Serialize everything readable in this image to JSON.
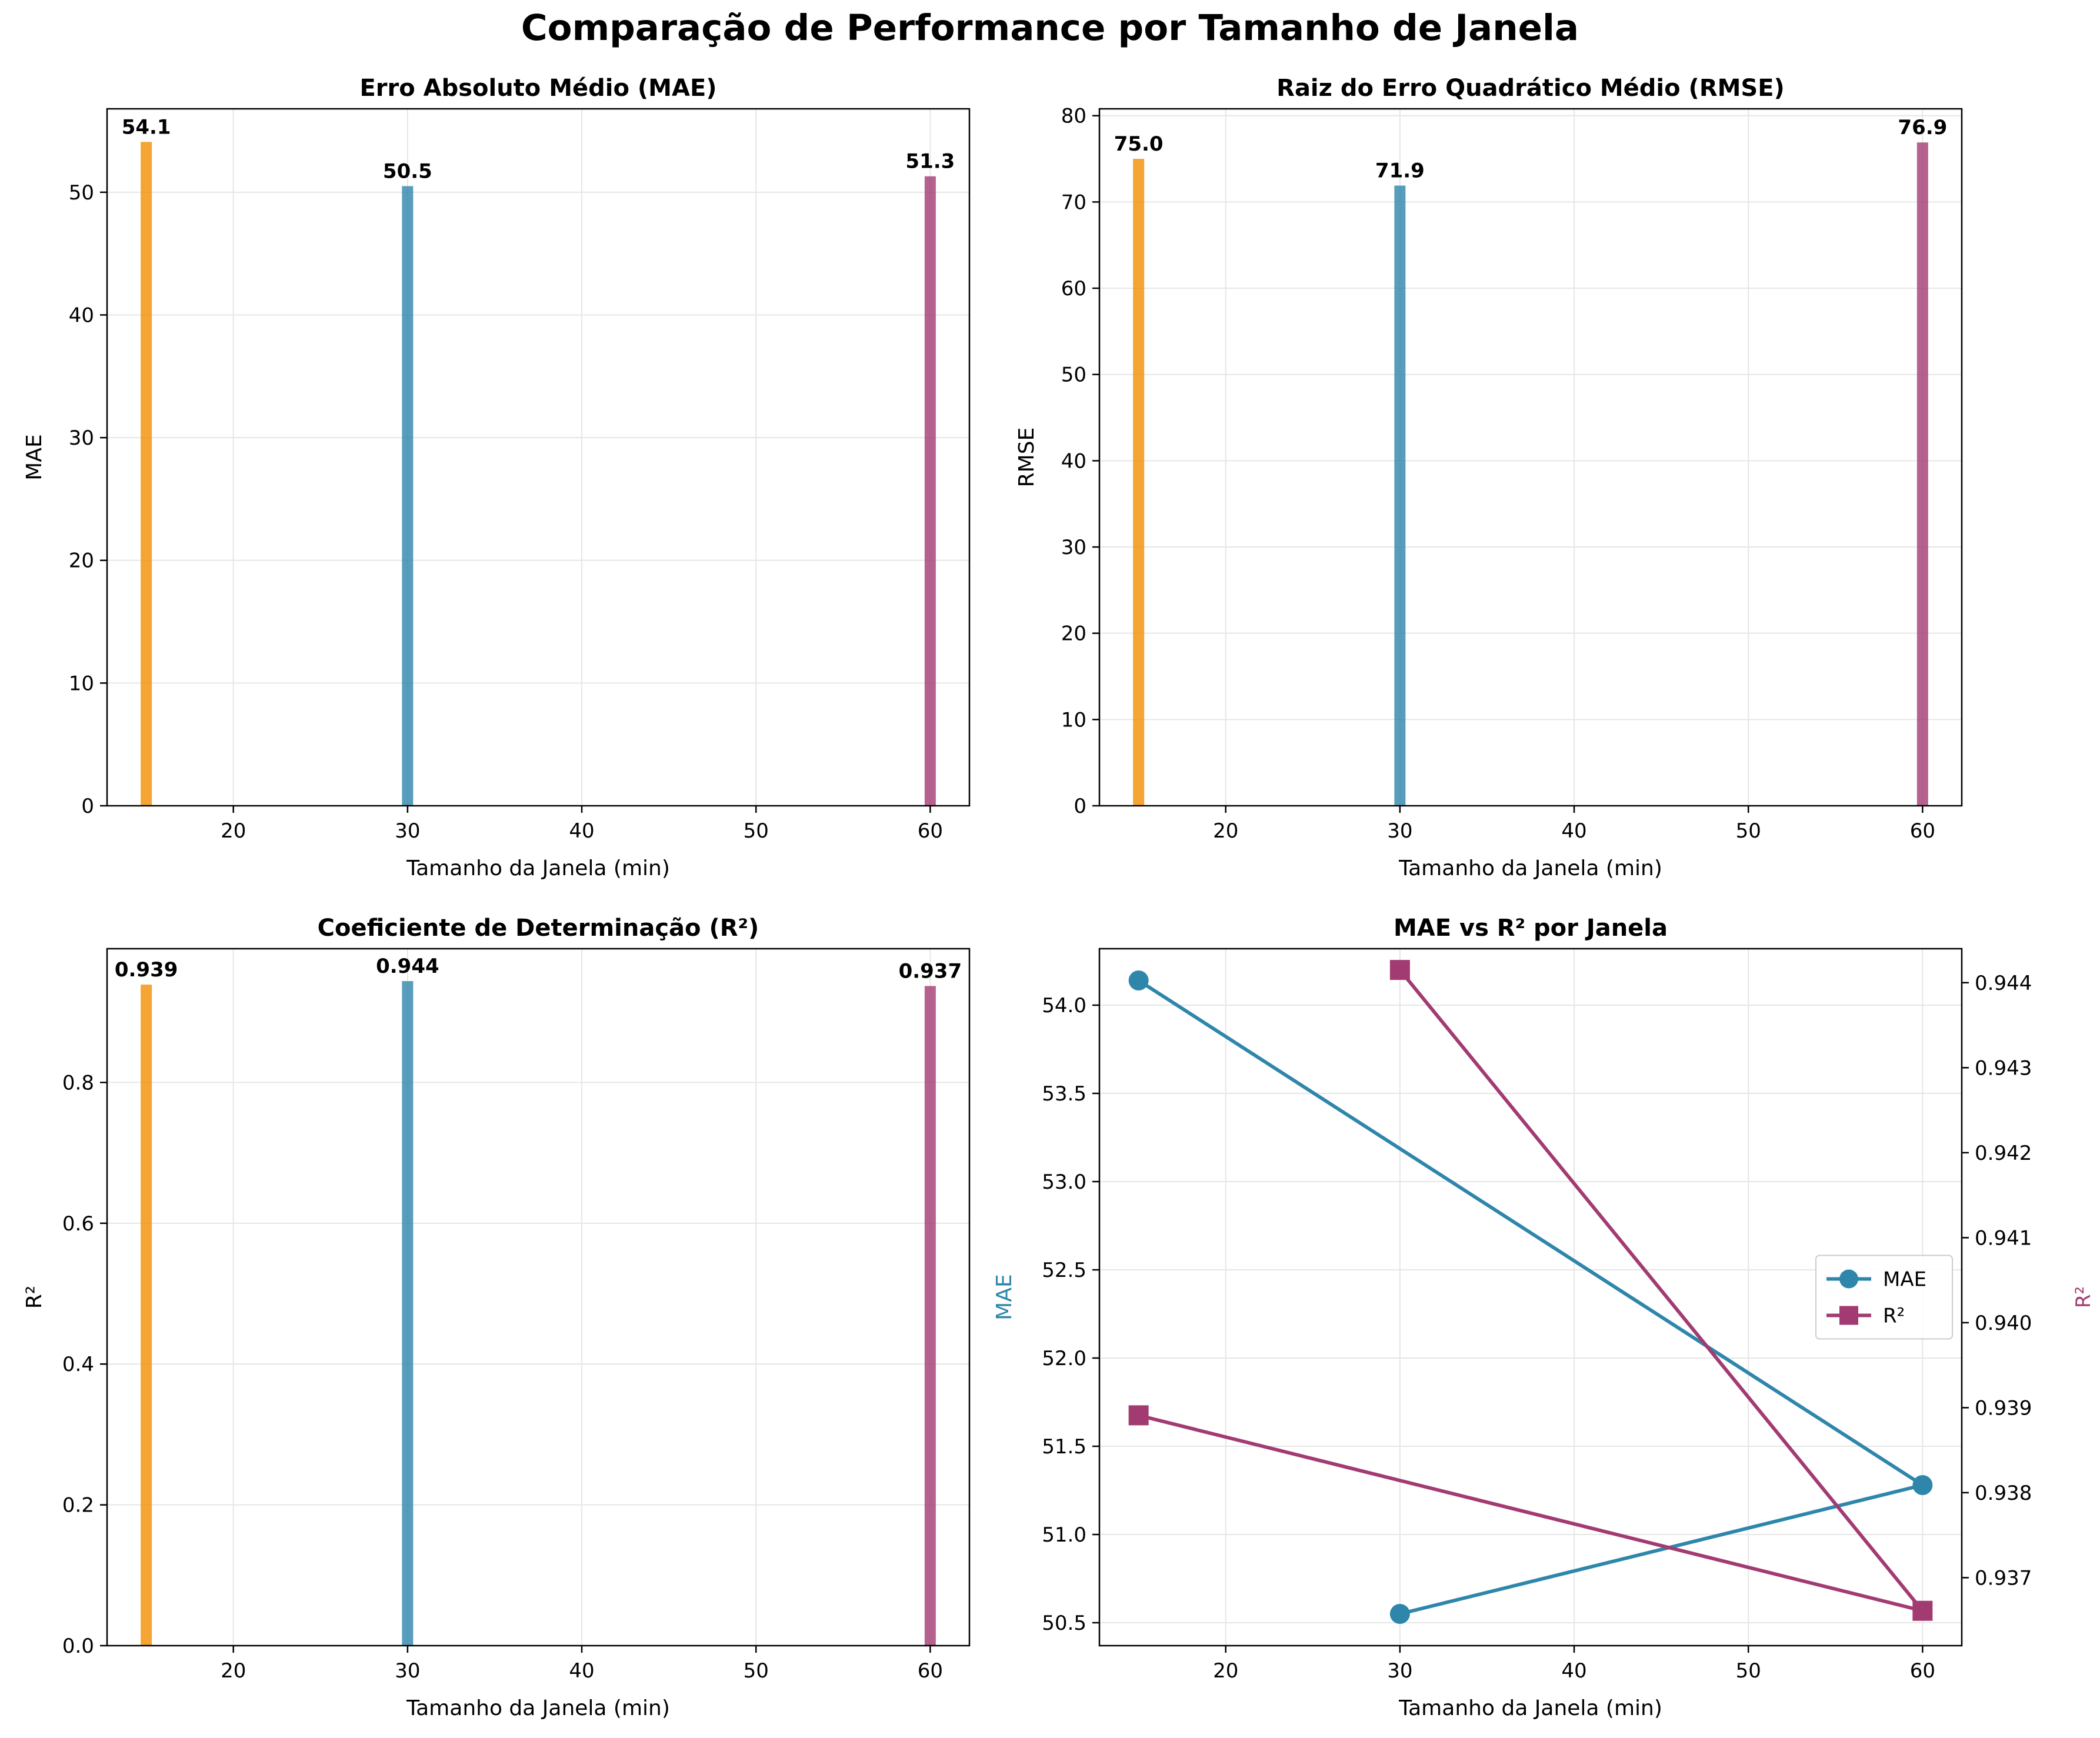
{
  "suptitle": "Comparação de Performance por Tamanho de Janela",
  "colors": {
    "bar_15": "#F18F01",
    "bar_30": "#2E86AB",
    "bar_60": "#A23B72",
    "mae_line": "#2E86AB",
    "r2_line": "#A23B72",
    "grid": "#e6e6e6"
  },
  "chart_data": [
    {
      "type": "bar",
      "title": "Erro Absoluto Médio (MAE)",
      "xlabel": "Tamanho da Janela (min)",
      "ylabel": "MAE",
      "x": [
        15,
        30,
        60
      ],
      "values": [
        54.1,
        50.5,
        51.3
      ],
      "value_labels": [
        "54.1",
        "50.5",
        "51.3"
      ],
      "xlim": [
        12.75,
        62.25
      ],
      "ylim": [
        0,
        56.8
      ],
      "xticks": [
        20,
        30,
        40,
        50,
        60
      ],
      "yticks": [
        0,
        10,
        20,
        30,
        40,
        50
      ],
      "ytick_labels": [
        "0",
        "10",
        "20",
        "30",
        "40",
        "50"
      ],
      "grid": true
    },
    {
      "type": "bar",
      "title": "Raiz do Erro Quadrático Médio (RMSE)",
      "xlabel": "Tamanho da Janela (min)",
      "ylabel": "RMSE",
      "x": [
        15,
        30,
        60
      ],
      "values": [
        75.0,
        71.9,
        76.9
      ],
      "value_labels": [
        "75.0",
        "71.9",
        "76.9"
      ],
      "xlim": [
        12.75,
        62.25
      ],
      "ylim": [
        0,
        80.8
      ],
      "xticks": [
        20,
        30,
        40,
        50,
        60
      ],
      "yticks": [
        0,
        10,
        20,
        30,
        40,
        50,
        60,
        70,
        80
      ],
      "ytick_labels": [
        "0",
        "10",
        "20",
        "30",
        "40",
        "50",
        "60",
        "70",
        "80"
      ],
      "grid": true
    },
    {
      "type": "bar",
      "title": "Coeficiente de Determinação (R²)",
      "xlabel": "Tamanho da Janela (min)",
      "ylabel": "R²",
      "x": [
        15,
        30,
        60
      ],
      "values": [
        0.939,
        0.944,
        0.937
      ],
      "value_labels": [
        "0.939",
        "0.944",
        "0.937"
      ],
      "xlim": [
        12.75,
        62.25
      ],
      "ylim": [
        0,
        0.99
      ],
      "xticks": [
        20,
        30,
        40,
        50,
        60
      ],
      "yticks": [
        0,
        0.2,
        0.4,
        0.6,
        0.8
      ],
      "ytick_labels": [
        "0.0",
        "0.2",
        "0.4",
        "0.6",
        "0.8"
      ],
      "grid": true
    },
    {
      "type": "line",
      "title": "MAE vs R² por Janela",
      "xlabel": "Tamanho da Janela (min)",
      "ylabel": "MAE",
      "ylabel_right": "R²",
      "x": [
        15,
        30,
        60
      ],
      "xlim": [
        12.75,
        62.25
      ],
      "ylim": [
        50.37,
        54.32
      ],
      "ylim_right": [
        0.9362,
        0.9444
      ],
      "xticks": [
        20,
        30,
        40,
        50,
        60
      ],
      "yticks": [
        50.5,
        51.0,
        51.5,
        52.0,
        52.5,
        53.0,
        53.5,
        54.0
      ],
      "ytick_labels": [
        "50.5",
        "51.0",
        "51.5",
        "52.0",
        "52.5",
        "53.0",
        "53.5",
        "54.0"
      ],
      "yticks_right": [
        0.937,
        0.938,
        0.939,
        0.94,
        0.941,
        0.942,
        0.943,
        0.944
      ],
      "ytick_labels_right": [
        "0.937",
        "0.938",
        "0.939",
        "0.940",
        "0.941",
        "0.942",
        "0.943",
        "0.944"
      ],
      "series": [
        {
          "name": "MAE",
          "axis": "left",
          "marker": "circle",
          "x_order": [
            15,
            60,
            30
          ],
          "values_order": [
            54.14,
            51.28,
            50.55
          ]
        },
        {
          "name": "R²",
          "axis": "right",
          "marker": "square",
          "x_order": [
            30,
            60,
            15
          ],
          "values_order": [
            0.94415,
            0.93661,
            0.93891
          ]
        }
      ],
      "legend_position": "center-right",
      "grid": true
    }
  ]
}
